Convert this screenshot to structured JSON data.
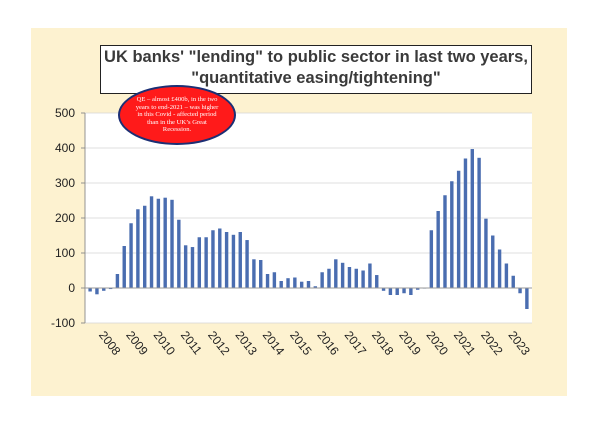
{
  "chart_data": {
    "type": "bar",
    "title_line1": "UK banks' \"lending\" to public sector in last two years,",
    "title_line2": "\"quantitative easing/tightening\"",
    "annotation": "QE – almost £400b, in the two years to end-2021 – was higher in this Covid - affected period than in the UK’s Great Recession.",
    "ylim": [
      -100,
      500
    ],
    "yticks": [
      "-100",
      "0",
      "100",
      "200",
      "300",
      "400",
      "500"
    ],
    "year_labels": [
      "2008",
      "2009",
      "2010",
      "2011",
      "2012",
      "2013",
      "2014",
      "2015",
      "2016",
      "2017",
      "2018",
      "2019",
      "2020",
      "2021",
      "2022",
      "2023"
    ],
    "x_start_year": 2008,
    "quarters_per_year": 4,
    "values": [
      -10,
      -18,
      -8,
      -3,
      40,
      120,
      185,
      225,
      235,
      262,
      255,
      258,
      252,
      195,
      122,
      117,
      145,
      145,
      165,
      170,
      160,
      152,
      160,
      137,
      82,
      80,
      40,
      45,
      20,
      28,
      30,
      18,
      20,
      5,
      45,
      55,
      82,
      72,
      60,
      55,
      50,
      70,
      37,
      -8,
      -20,
      -20,
      -15,
      -20,
      -5,
      0,
      165,
      220,
      265,
      305,
      335,
      370,
      397,
      372,
      198,
      150,
      110,
      70,
      35,
      -15,
      -60
    ],
    "grid": true,
    "legend": "none"
  },
  "colors": {
    "bar": "#4a6db0",
    "frame_background": "#fdf2d0",
    "callout_fill": "#ff1a1a",
    "callout_border": "#1c2f74"
  }
}
